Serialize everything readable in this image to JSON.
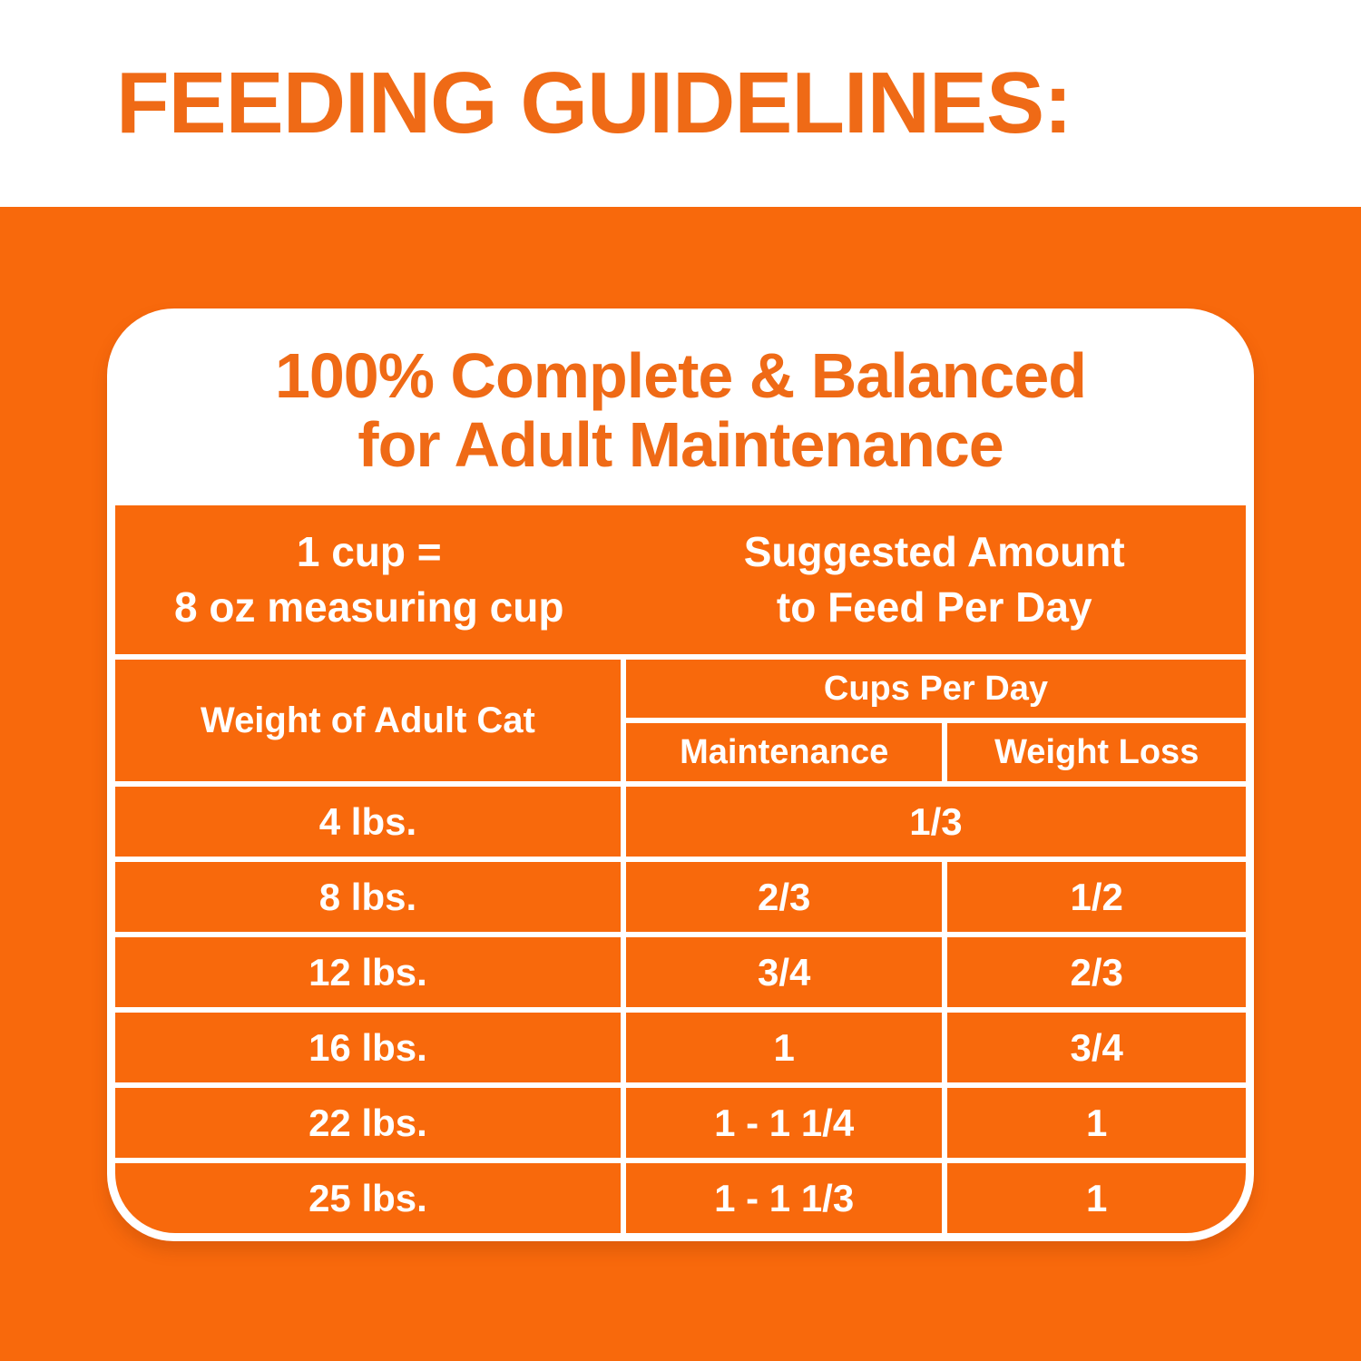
{
  "colors": {
    "background_orange": "#F8690C",
    "text_orange": "#EF6A16",
    "white": "#FFFFFF"
  },
  "header": {
    "title": "FEEDING GUIDELINES:"
  },
  "card": {
    "title_line1": "100% Complete & Balanced",
    "title_line2": "for Adult Maintenance",
    "table": {
      "cup_note_line1": "1 cup =",
      "cup_note_line2": "8 oz measuring cup",
      "suggested_line1": "Suggested Amount",
      "suggested_line2": "to Feed Per Day",
      "weight_header": "Weight of Adult Cat",
      "cups_header": "Cups Per Day",
      "col_maintenance": "Maintenance",
      "col_weight_loss": "Weight Loss",
      "rows": [
        {
          "weight": "4 lbs.",
          "merged": "1/3"
        },
        {
          "weight": "8 lbs.",
          "maintenance": "2/3",
          "weight_loss": "1/2"
        },
        {
          "weight": "12 lbs.",
          "maintenance": "3/4",
          "weight_loss": "2/3"
        },
        {
          "weight": "16 lbs.",
          "maintenance": "1",
          "weight_loss": "3/4"
        },
        {
          "weight": "22 lbs.",
          "maintenance": "1 - 1 1/4",
          "weight_loss": "1"
        },
        {
          "weight": "25 lbs.",
          "maintenance": "1 - 1 1/3",
          "weight_loss": "1"
        }
      ]
    }
  },
  "chart_data": {
    "type": "table",
    "title": "Feeding Guidelines — 100% Complete & Balanced for Adult Maintenance",
    "note": "1 cup = 8 oz measuring cup; amounts are suggested cups to feed per day",
    "columns": [
      "Weight of Adult Cat",
      "Maintenance (Cups Per Day)",
      "Weight Loss (Cups Per Day)"
    ],
    "rows": [
      [
        "4 lbs.",
        "1/3",
        "1/3"
      ],
      [
        "8 lbs.",
        "2/3",
        "1/2"
      ],
      [
        "12 lbs.",
        "3/4",
        "2/3"
      ],
      [
        "16 lbs.",
        "1",
        "3/4"
      ],
      [
        "22 lbs.",
        "1 - 1 1/4",
        "1"
      ],
      [
        "25 lbs.",
        "1 - 1 1/3",
        "1"
      ]
    ]
  }
}
